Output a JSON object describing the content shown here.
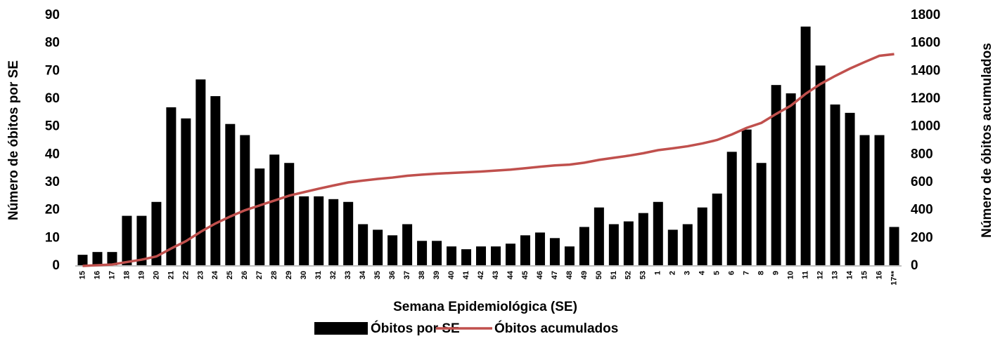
{
  "chart_data": {
    "type": "bar-line",
    "x_label": "Semana Epidemiológica (SE)",
    "y_label": "Número de óbitos por SE",
    "y2_label": "Número de óbitos acumulados",
    "categories": [
      "15",
      "16",
      "17",
      "18",
      "19",
      "20",
      "21",
      "22",
      "23",
      "24",
      "25",
      "26",
      "27",
      "28",
      "29",
      "30",
      "31",
      "32",
      "33",
      "34",
      "35",
      "36",
      "37",
      "38",
      "39",
      "40",
      "41",
      "42",
      "43",
      "44",
      "45",
      "46",
      "47",
      "48",
      "49",
      "50",
      "51",
      "52",
      "53",
      "1",
      "2",
      "3",
      "4",
      "5",
      "6",
      "7",
      "8",
      "9",
      "10",
      "11",
      "12",
      "13",
      "14",
      "15",
      "16",
      "17**"
    ],
    "series": [
      {
        "name": "Óbitos por SE",
        "type": "bar",
        "color": "#000000",
        "values": [
          4,
          5,
          5,
          18,
          18,
          23,
          57,
          53,
          67,
          61,
          51,
          47,
          35,
          40,
          37,
          25,
          25,
          24,
          23,
          15,
          13,
          11,
          15,
          9,
          9,
          7,
          6,
          7,
          7,
          8,
          11,
          12,
          10,
          7,
          14,
          21,
          15,
          16,
          19,
          23,
          13,
          15,
          21,
          26,
          41,
          49,
          37,
          65,
          62,
          86,
          72,
          58,
          55,
          47,
          47,
          14
        ]
      },
      {
        "name": "Óbitos acumulados",
        "type": "line",
        "axis": "y2",
        "color": "#c0504d",
        "values": [
          0,
          5,
          10,
          28,
          45,
          68,
          125,
          178,
          245,
          305,
          355,
          400,
          435,
          470,
          505,
          530,
          555,
          578,
          600,
          613,
          625,
          635,
          648,
          656,
          663,
          668,
          673,
          678,
          685,
          692,
          702,
          713,
          722,
          728,
          742,
          762,
          777,
          792,
          810,
          832,
          845,
          860,
          880,
          905,
          945,
          992,
          1028,
          1092,
          1152,
          1237,
          1307,
          1365,
          1418,
          1465,
          1510,
          1522
        ]
      }
    ],
    "ylim": [
      0,
      90
    ],
    "yticks": [
      0,
      10,
      20,
      30,
      40,
      50,
      60,
      70,
      80,
      90
    ],
    "y2lim": [
      0,
      1800
    ],
    "y2ticks": [
      0,
      200,
      400,
      600,
      800,
      1000,
      1200,
      1400,
      1600,
      1800
    ],
    "legend": "bottom"
  }
}
